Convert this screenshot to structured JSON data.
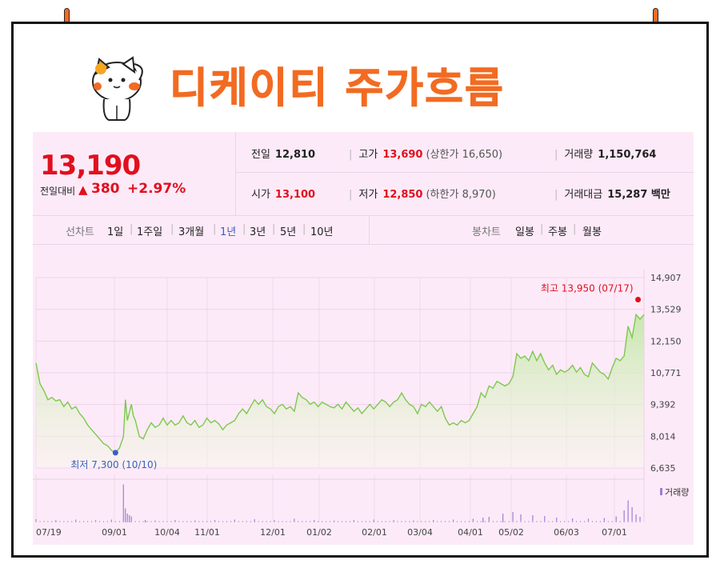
{
  "title": "디케이티 주가흐름",
  "colors": {
    "accent": "#f26b22",
    "up": "#e0101e",
    "down": "#3b5fc2",
    "panel": "#fdeaf8",
    "line": "#7cc94e"
  },
  "quote": {
    "price": "13,190",
    "change_label": "전일대비",
    "change_arrow": "▲",
    "change_value": "380",
    "change_pct": "+2.97%",
    "prev_close_label": "전일",
    "prev_close": "12,810",
    "open_label": "시가",
    "open": "13,100",
    "high_label": "고가",
    "high": "13,690",
    "upper_limit": "(상한가 16,650)",
    "low_label": "저가",
    "low": "12,850",
    "lower_limit": "(하한가 8,970)",
    "volume_label": "거래량",
    "volume": "1,150,764",
    "amount_label": "거래대금",
    "amount": "15,287 백만"
  },
  "tabs": {
    "line_chart_label": "선차트",
    "periods": [
      "1일",
      "1주일",
      "3개월",
      "1년",
      "3년",
      "5년",
      "10년"
    ],
    "active_period": "1년",
    "candle_chart_label": "봉차트",
    "candles": [
      "일봉",
      "주봉",
      "월봉"
    ]
  },
  "chart_data": {
    "type": "area",
    "x_ticks": [
      "07/19",
      "09/01",
      "10/04",
      "11/01",
      "12/01",
      "01/02",
      "02/01",
      "03/04",
      "04/01",
      "05/02",
      "06/03",
      "07/01"
    ],
    "y_ticks": [
      14907,
      13529,
      12150,
      10771,
      9392,
      8014,
      6635
    ],
    "y_tick_labels": [
      "14,907",
      "13,529",
      "12,150",
      "10,771",
      "9,392",
      "8,014",
      "6,635"
    ],
    "ylim": [
      6635,
      14907
    ],
    "max_annotation": "최고 13,950 (07/17)",
    "min_annotation": "최저 7,300 (10/10)",
    "volume_label": "거래량",
    "price_series": [
      [
        0,
        11200
      ],
      [
        2,
        10300
      ],
      [
        4,
        10000
      ],
      [
        6,
        9600
      ],
      [
        8,
        9700
      ],
      [
        10,
        9550
      ],
      [
        12,
        9600
      ],
      [
        14,
        9300
      ],
      [
        16,
        9500
      ],
      [
        18,
        9200
      ],
      [
        20,
        9300
      ],
      [
        22,
        9000
      ],
      [
        24,
        8800
      ],
      [
        26,
        8500
      ],
      [
        28,
        8300
      ],
      [
        30,
        8100
      ],
      [
        32,
        7900
      ],
      [
        34,
        7700
      ],
      [
        36,
        7600
      ],
      [
        38,
        7400
      ],
      [
        40,
        7300
      ],
      [
        42,
        7500
      ],
      [
        44,
        8000
      ],
      [
        45,
        9600
      ],
      [
        46,
        8700
      ],
      [
        48,
        9400
      ],
      [
        49,
        8900
      ],
      [
        50,
        8700
      ],
      [
        52,
        8000
      ],
      [
        54,
        7900
      ],
      [
        56,
        8300
      ],
      [
        58,
        8600
      ],
      [
        60,
        8400
      ],
      [
        62,
        8500
      ],
      [
        64,
        8800
      ],
      [
        66,
        8500
      ],
      [
        68,
        8700
      ],
      [
        70,
        8500
      ],
      [
        72,
        8600
      ],
      [
        74,
        8900
      ],
      [
        76,
        8600
      ],
      [
        78,
        8500
      ],
      [
        80,
        8700
      ],
      [
        82,
        8400
      ],
      [
        84,
        8500
      ],
      [
        86,
        8800
      ],
      [
        88,
        8600
      ],
      [
        90,
        8700
      ],
      [
        92,
        8550
      ],
      [
        94,
        8300
      ],
      [
        96,
        8500
      ],
      [
        98,
        8600
      ],
      [
        100,
        8700
      ],
      [
        102,
        9000
      ],
      [
        104,
        9200
      ],
      [
        106,
        9000
      ],
      [
        108,
        9300
      ],
      [
        110,
        9600
      ],
      [
        112,
        9400
      ],
      [
        114,
        9600
      ],
      [
        116,
        9300
      ],
      [
        118,
        9200
      ],
      [
        120,
        9000
      ],
      [
        122,
        9300
      ],
      [
        124,
        9400
      ],
      [
        126,
        9200
      ],
      [
        128,
        9300
      ],
      [
        130,
        9100
      ],
      [
        132,
        9900
      ],
      [
        134,
        9700
      ],
      [
        136,
        9600
      ],
      [
        138,
        9400
      ],
      [
        140,
        9500
      ],
      [
        142,
        9300
      ],
      [
        144,
        9500
      ],
      [
        146,
        9400
      ],
      [
        148,
        9300
      ],
      [
        150,
        9250
      ],
      [
        152,
        9400
      ],
      [
        154,
        9200
      ],
      [
        156,
        9500
      ],
      [
        158,
        9300
      ],
      [
        160,
        9100
      ],
      [
        162,
        9250
      ],
      [
        164,
        9000
      ],
      [
        166,
        9200
      ],
      [
        168,
        9400
      ],
      [
        170,
        9200
      ],
      [
        172,
        9400
      ],
      [
        174,
        9600
      ],
      [
        176,
        9500
      ],
      [
        178,
        9300
      ],
      [
        180,
        9500
      ],
      [
        182,
        9600
      ],
      [
        184,
        9900
      ],
      [
        186,
        9600
      ],
      [
        188,
        9400
      ],
      [
        190,
        9300
      ],
      [
        192,
        9000
      ],
      [
        194,
        9400
      ],
      [
        196,
        9300
      ],
      [
        198,
        9500
      ],
      [
        200,
        9300
      ],
      [
        202,
        9100
      ],
      [
        204,
        9300
      ],
      [
        206,
        8800
      ],
      [
        208,
        8500
      ],
      [
        210,
        8600
      ],
      [
        212,
        8500
      ],
      [
        214,
        8700
      ],
      [
        216,
        8600
      ],
      [
        218,
        8700
      ],
      [
        220,
        9000
      ],
      [
        222,
        9300
      ],
      [
        224,
        9900
      ],
      [
        226,
        9700
      ],
      [
        228,
        10200
      ],
      [
        230,
        10100
      ],
      [
        232,
        10400
      ],
      [
        234,
        10300
      ],
      [
        236,
        10200
      ],
      [
        238,
        10300
      ],
      [
        240,
        10600
      ],
      [
        242,
        11600
      ],
      [
        244,
        11400
      ],
      [
        246,
        11500
      ],
      [
        248,
        11300
      ],
      [
        250,
        11700
      ],
      [
        252,
        11300
      ],
      [
        254,
        11600
      ],
      [
        256,
        11200
      ],
      [
        258,
        10900
      ],
      [
        260,
        11100
      ],
      [
        262,
        10700
      ],
      [
        264,
        10900
      ],
      [
        266,
        10800
      ],
      [
        268,
        10900
      ],
      [
        270,
        11100
      ],
      [
        272,
        10800
      ],
      [
        274,
        11000
      ],
      [
        276,
        10700
      ],
      [
        278,
        10600
      ],
      [
        280,
        11200
      ],
      [
        282,
        11000
      ],
      [
        284,
        10800
      ],
      [
        286,
        10700
      ],
      [
        288,
        10500
      ],
      [
        290,
        11000
      ],
      [
        292,
        11400
      ],
      [
        294,
        11300
      ],
      [
        296,
        11500
      ],
      [
        298,
        12800
      ],
      [
        300,
        12300
      ],
      [
        302,
        13300
      ],
      [
        304,
        13100
      ],
      [
        306,
        13300
      ]
    ],
    "volume_series": [
      [
        44,
        0.95
      ],
      [
        45,
        0.35
      ],
      [
        46,
        0.22
      ],
      [
        47,
        0.18
      ],
      [
        48,
        0.15
      ],
      [
        0,
        0.08
      ],
      [
        10,
        0.06
      ],
      [
        20,
        0.07
      ],
      [
        30,
        0.06
      ],
      [
        38,
        0.07
      ],
      [
        55,
        0.06
      ],
      [
        60,
        0.05
      ],
      [
        70,
        0.06
      ],
      [
        80,
        0.05
      ],
      [
        90,
        0.06
      ],
      [
        100,
        0.07
      ],
      [
        110,
        0.08
      ],
      [
        120,
        0.06
      ],
      [
        130,
        0.09
      ],
      [
        140,
        0.06
      ],
      [
        150,
        0.05
      ],
      [
        160,
        0.06
      ],
      [
        170,
        0.07
      ],
      [
        180,
        0.06
      ],
      [
        190,
        0.05
      ],
      [
        200,
        0.06
      ],
      [
        210,
        0.07
      ],
      [
        220,
        0.09
      ],
      [
        225,
        0.12
      ],
      [
        228,
        0.14
      ],
      [
        235,
        0.22
      ],
      [
        240,
        0.26
      ],
      [
        244,
        0.2
      ],
      [
        250,
        0.18
      ],
      [
        256,
        0.16
      ],
      [
        262,
        0.12
      ],
      [
        270,
        0.1
      ],
      [
        278,
        0.09
      ],
      [
        286,
        0.11
      ],
      [
        292,
        0.15
      ],
      [
        296,
        0.3
      ],
      [
        298,
        0.55
      ],
      [
        300,
        0.38
      ],
      [
        302,
        0.2
      ],
      [
        304,
        0.14
      ]
    ]
  }
}
